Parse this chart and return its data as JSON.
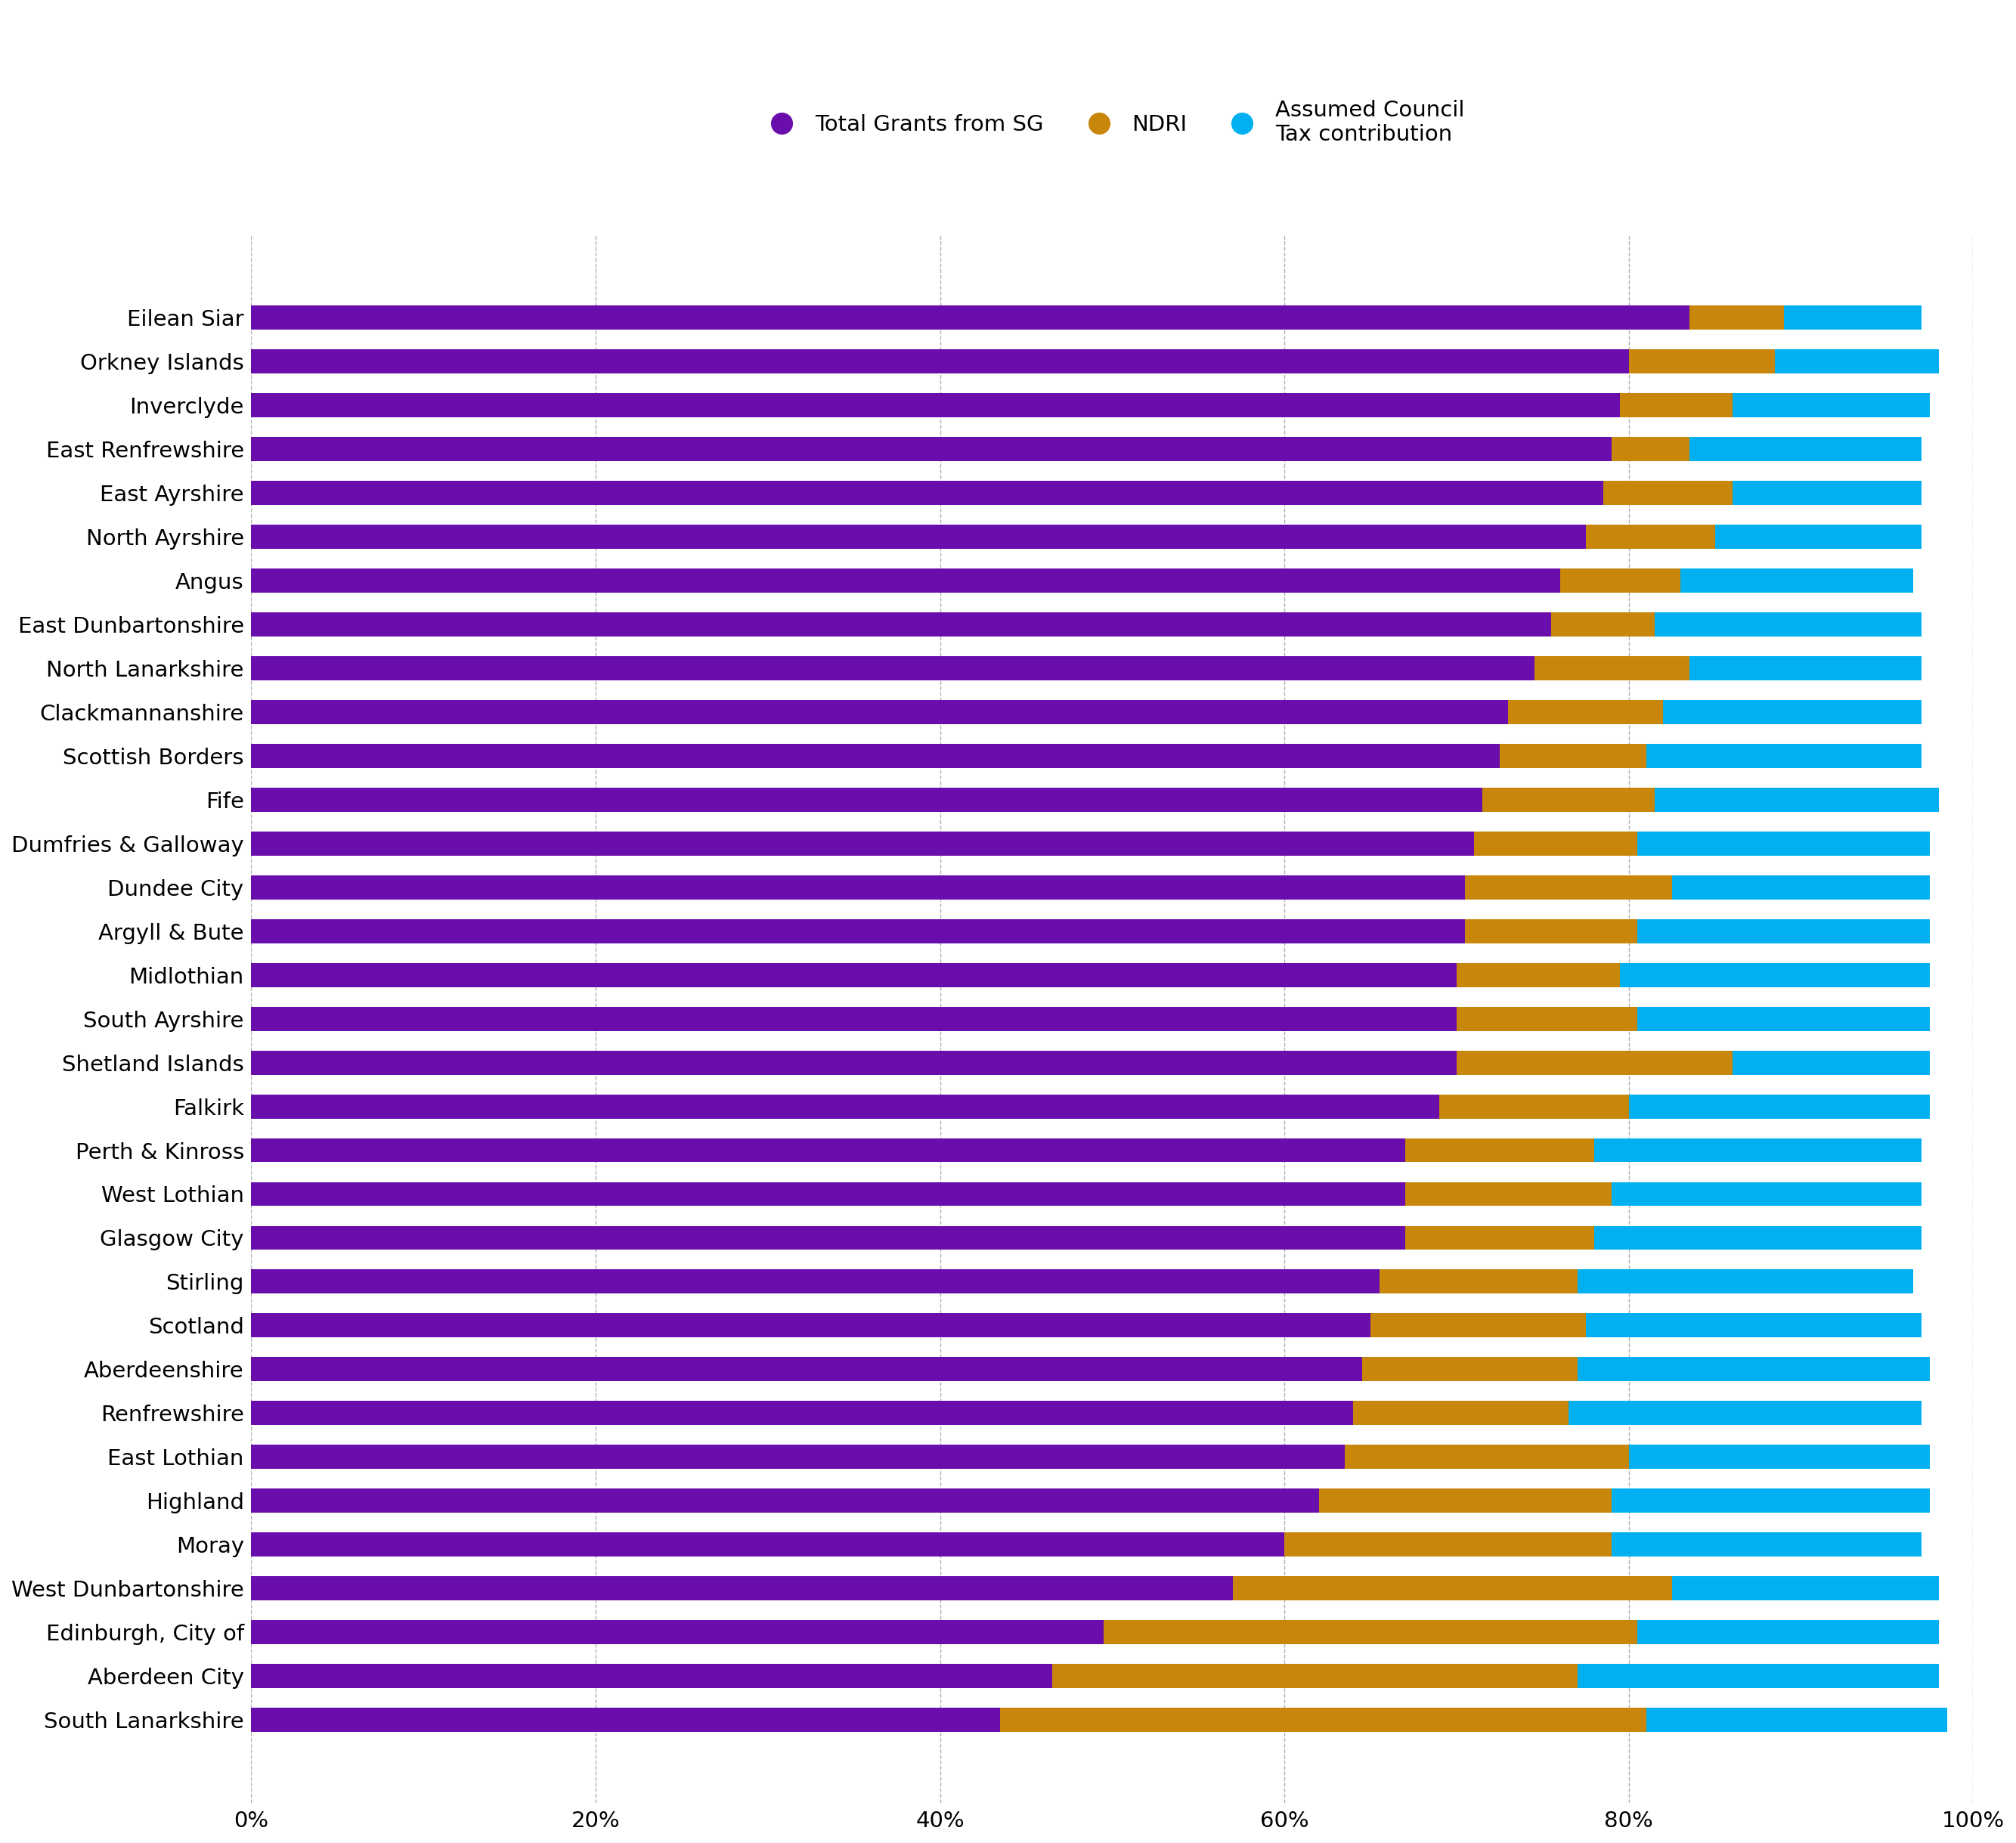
{
  "categories": [
    "Eilean Siar",
    "Orkney Islands",
    "Inverclyde",
    "East Renfrewshire",
    "East Ayrshire",
    "North Ayrshire",
    "Angus",
    "East Dunbartonshire",
    "North Lanarkshire",
    "Clackmannanshire",
    "Scottish Borders",
    "Fife",
    "Dumfries & Galloway",
    "Dundee City",
    "Argyll & Bute",
    "Midlothian",
    "South Ayrshire",
    "Shetland Islands",
    "Falkirk",
    "Perth & Kinross",
    "West Lothian",
    "Glasgow City",
    "Stirling",
    "Scotland",
    "Aberdeenshire",
    "Renfrewshire",
    "East Lothian",
    "Highland",
    "Moray",
    "West Dunbartonshire",
    "Edinburgh, City of",
    "Aberdeen City",
    "South Lanarkshire"
  ],
  "grants": [
    83.5,
    80.0,
    79.5,
    79.0,
    78.5,
    77.5,
    76.0,
    75.5,
    74.5,
    73.0,
    72.5,
    71.5,
    71.0,
    70.5,
    70.5,
    70.0,
    70.0,
    70.0,
    69.0,
    67.0,
    67.0,
    67.0,
    65.5,
    65.0,
    64.5,
    64.0,
    63.5,
    62.0,
    60.0,
    57.0,
    49.5,
    46.5,
    43.5
  ],
  "ndri": [
    5.5,
    8.5,
    6.5,
    4.5,
    7.5,
    7.5,
    7.0,
    6.0,
    9.0,
    9.0,
    8.5,
    10.0,
    9.5,
    12.0,
    10.0,
    9.5,
    10.5,
    16.0,
    11.0,
    11.0,
    12.0,
    11.0,
    11.5,
    12.5,
    12.5,
    12.5,
    16.5,
    17.0,
    19.0,
    25.5,
    31.0,
    30.5,
    37.5
  ],
  "council_tax": [
    8.0,
    9.5,
    11.5,
    13.5,
    11.0,
    12.0,
    13.5,
    15.5,
    13.5,
    15.0,
    16.0,
    16.5,
    17.0,
    15.0,
    17.0,
    18.0,
    17.0,
    11.5,
    17.5,
    19.0,
    18.0,
    19.0,
    19.5,
    19.5,
    20.5,
    20.5,
    17.5,
    18.5,
    18.0,
    15.5,
    17.5,
    21.0,
    17.5
  ],
  "colors": {
    "grants": "#6a0dad",
    "ndri": "#c8860a",
    "council_tax": "#00b0f0"
  },
  "legend_labels": [
    "Total Grants from SG",
    "NDRI",
    "Assumed Council\nTax contribution"
  ],
  "background_color": "#ffffff",
  "xlim": [
    0,
    100
  ],
  "xtick_labels": [
    "0%",
    "20%",
    "40%",
    "60%",
    "80%",
    "100%"
  ]
}
